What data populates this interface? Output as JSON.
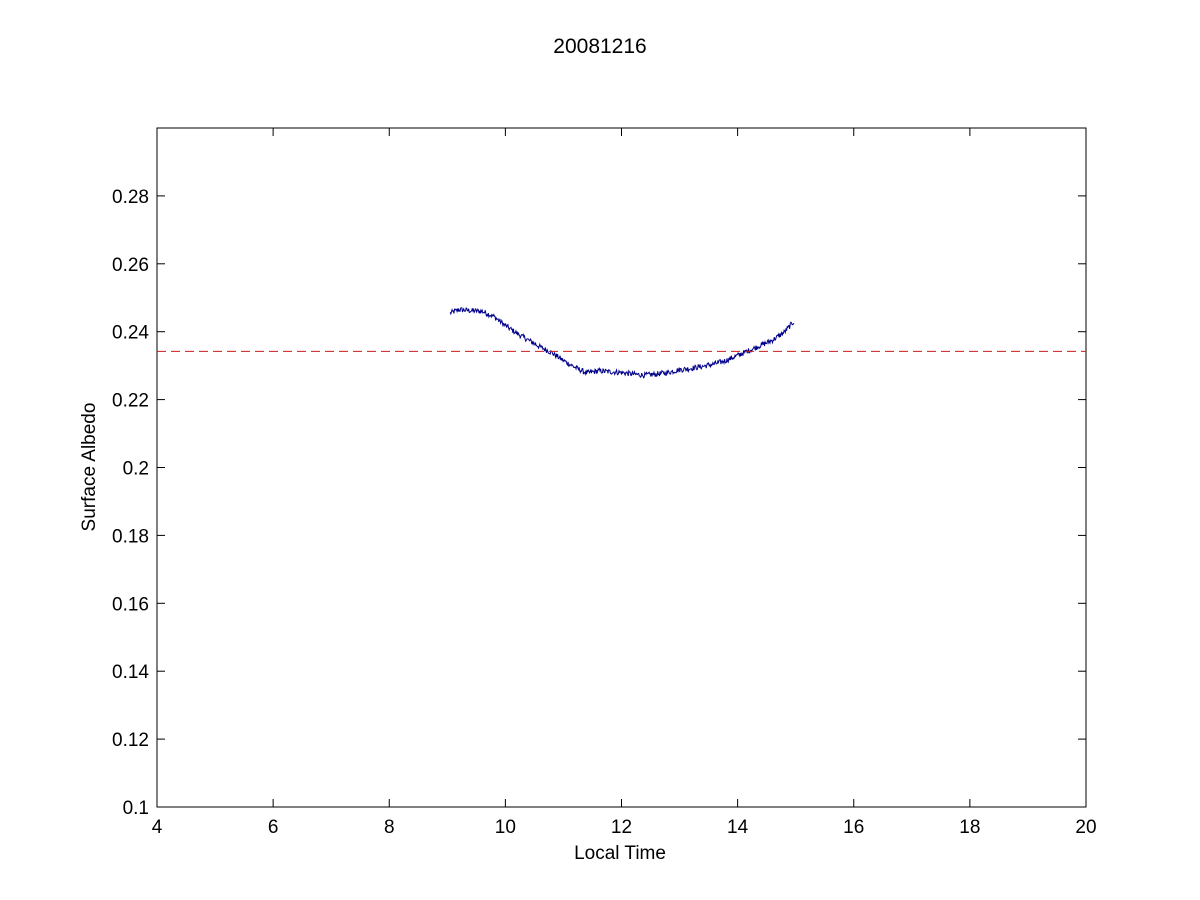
{
  "chart_data": {
    "type": "line",
    "title": "20081216",
    "xlabel": "Local Time",
    "ylabel": "Surface Albedo",
    "xlim": [
      4,
      20
    ],
    "ylim": [
      0.1,
      0.3
    ],
    "xticks": [
      4,
      6,
      8,
      10,
      12,
      14,
      16,
      18,
      20
    ],
    "xtick_labels": [
      "4",
      "6",
      "8",
      "10",
      "12",
      "14",
      "16",
      "18",
      "20"
    ],
    "yticks": [
      0.1,
      0.12,
      0.14,
      0.16,
      0.18,
      0.2,
      0.22,
      0.24,
      0.26,
      0.28
    ],
    "ytick_labels": [
      "0.1",
      "0.12",
      "0.14",
      "0.16",
      "0.18",
      "0.2",
      "0.22",
      "0.24",
      "0.26",
      "0.28"
    ],
    "grid": false,
    "series": [
      {
        "style": "solid",
        "color": "#00008b",
        "noisy": true,
        "x": [
          9.05,
          9.2,
          9.4,
          9.6,
          9.8,
          10.0,
          10.2,
          10.4,
          10.6,
          10.8,
          11.0,
          11.2,
          11.4,
          11.6,
          11.8,
          12.0,
          12.2,
          12.4,
          12.6,
          12.8,
          13.0,
          13.2,
          13.4,
          13.6,
          13.8,
          14.0,
          14.2,
          14.4,
          14.6,
          14.8,
          14.97
        ],
        "y": [
          0.2455,
          0.2465,
          0.2462,
          0.246,
          0.2445,
          0.2418,
          0.2395,
          0.2375,
          0.2355,
          0.2338,
          0.2315,
          0.2295,
          0.2278,
          0.2285,
          0.2282,
          0.228,
          0.2275,
          0.2272,
          0.2275,
          0.228,
          0.2288,
          0.2292,
          0.2298,
          0.2305,
          0.2315,
          0.233,
          0.2345,
          0.236,
          0.2375,
          0.2398,
          0.243
        ]
      },
      {
        "style": "dashed",
        "color": "#cc1c1c",
        "x": [
          4,
          20
        ],
        "y": [
          0.2342,
          0.2342
        ]
      }
    ]
  }
}
